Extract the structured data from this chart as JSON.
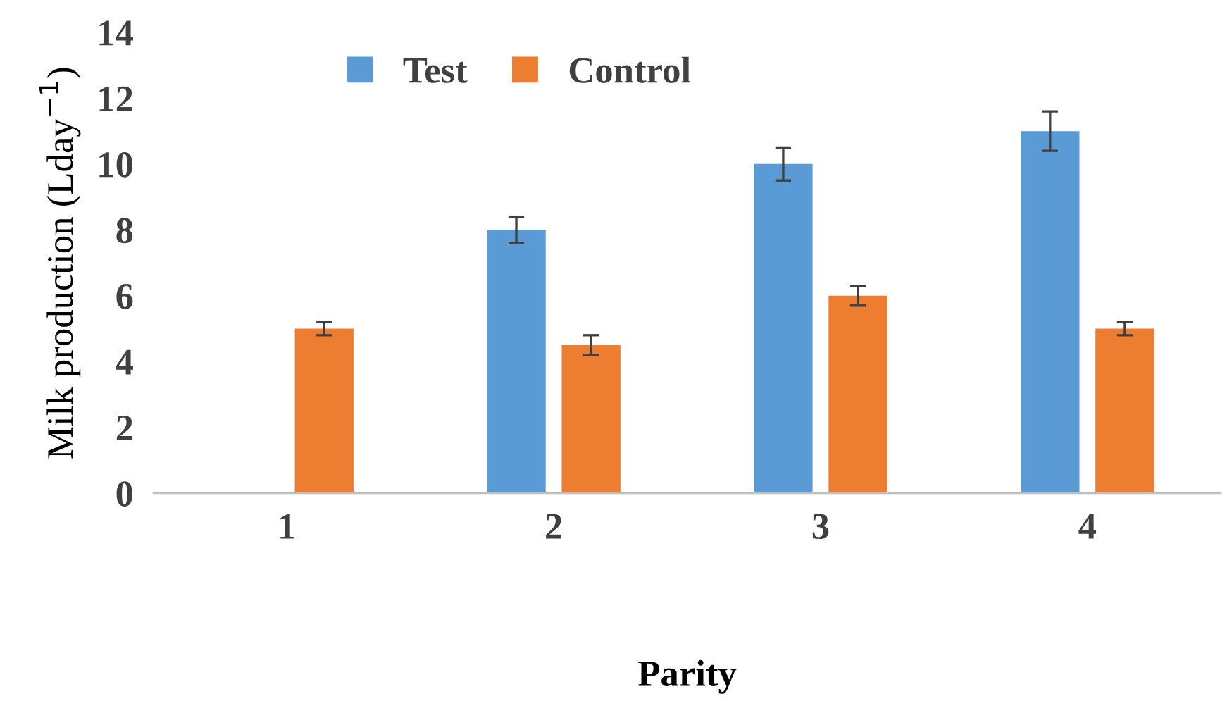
{
  "chart_data": {
    "type": "bar",
    "xlabel": "Parity",
    "ylabel": "Milk production (Lday$^{−1}$)",
    "categories": [
      "1",
      "2",
      "3",
      "4"
    ],
    "series": [
      {
        "name": "Test",
        "color": "#5b9bd5",
        "values": [
          null,
          8.0,
          10.0,
          11.0
        ],
        "errors": [
          null,
          0.4,
          0.5,
          0.6
        ]
      },
      {
        "name": "Control",
        "color": "#ed7d31",
        "values": [
          5.0,
          4.5,
          6.0,
          5.0
        ],
        "errors": [
          0.2,
          0.3,
          0.3,
          0.2
        ]
      }
    ],
    "ylim": [
      0,
      14
    ],
    "yticks": [
      0,
      2,
      4,
      6,
      8,
      10,
      12,
      14
    ],
    "grid": false,
    "legend": "top left"
  }
}
